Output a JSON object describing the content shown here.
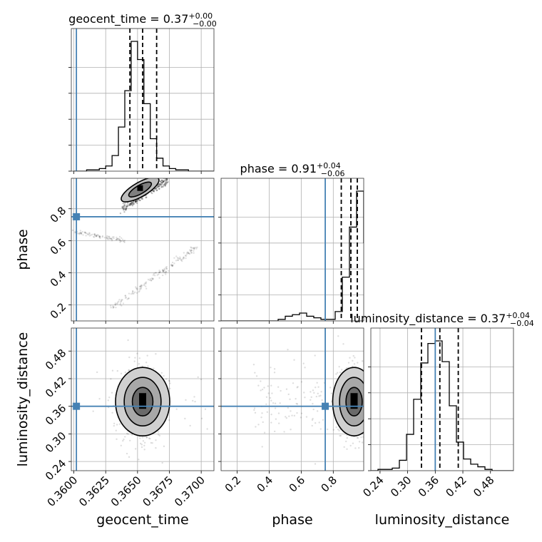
{
  "colors": {
    "truth": "#4682b4",
    "hist": "#000000",
    "grid": "#b0b0b0"
  },
  "chart_data": {
    "type": "corner",
    "parameters": [
      "geocent_time",
      "phase",
      "luminosity_distance"
    ],
    "truths": {
      "geocent_time": 0.3602,
      "phase": 0.75,
      "luminosity_distance": 0.36
    },
    "titles": [
      {
        "param": "geocent_time",
        "text": "geocent_time = 0.37",
        "sup": "+0.00",
        "sub": "−0.00"
      },
      {
        "param": "phase",
        "text": "phase = 0.91",
        "sup": "+0.04",
        "sub": "−0.06"
      },
      {
        "param": "luminosity_distance",
        "text": "luminosity_distance = 0.37",
        "sup": "+0.04",
        "sub": "−0.04"
      }
    ],
    "axis_labels": {
      "x": [
        "geocent_time",
        "phase",
        "luminosity_distance"
      ],
      "y": [
        "phase",
        "luminosity_distance"
      ]
    },
    "ranges": {
      "geocent_time": [
        0.3598,
        0.371
      ],
      "phase": [
        0.1,
        0.99
      ],
      "luminosity_distance": [
        0.22,
        0.53
      ]
    },
    "ticks": {
      "geocent_time": [
        "0.3600",
        "0.3625",
        "0.3650",
        "0.3675",
        "0.3700"
      ],
      "phase": [
        "0.2",
        "0.4",
        "0.6",
        "0.8"
      ],
      "luminosity_distance": [
        "0.24",
        "0.30",
        "0.36",
        "0.42",
        "0.48"
      ]
    },
    "quantiles": {
      "geocent_time": [
        0.3644,
        0.3654,
        0.3665
      ],
      "phase": [
        0.85,
        0.91,
        0.95
      ],
      "luminosity_distance": [
        0.33,
        0.37,
        0.41
      ]
    },
    "histograms": {
      "geocent_time": {
        "start": 0.36,
        "width": 0.0005,
        "counts": [
          0,
          0,
          1,
          1,
          2,
          4,
          12,
          34,
          62,
          100,
          86,
          52,
          25,
          10,
          4,
          2,
          1,
          1,
          0,
          0,
          0,
          0
        ]
      },
      "phase": {
        "start": 0.1,
        "width": 0.0445,
        "counts": [
          0,
          0,
          0,
          0,
          0,
          0,
          0,
          0,
          1,
          3,
          4,
          5,
          3,
          2,
          1,
          1,
          6,
          28,
          60,
          83,
          50
        ]
      },
      "luminosity_distance": {
        "start": 0.22,
        "width": 0.0155,
        "counts": [
          0,
          1,
          1,
          2,
          8,
          28,
          55,
          83,
          98,
          100,
          84,
          50,
          22,
          9,
          5,
          3,
          1,
          0,
          0,
          0
        ]
      }
    },
    "grid": true
  }
}
